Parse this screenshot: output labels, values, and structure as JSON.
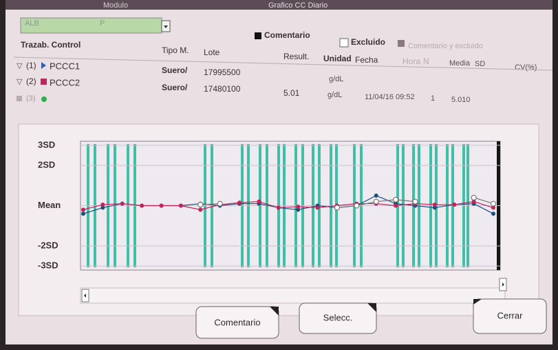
{
  "header": {
    "module_label": "Modulo",
    "title": "Grafico CC Diario",
    "select_value": "ALB",
    "select_value2": "P"
  },
  "legend": {
    "items": [
      "Comentario",
      "Excluido",
      "Comentario y excluido"
    ]
  },
  "table": {
    "columns": [
      "Trazab. Control",
      "Tipo M.",
      "Lote",
      "Result.",
      "Unidad",
      "Fecha",
      "Hora",
      "N",
      "Media",
      "SD",
      "CV(%)"
    ],
    "rows": [
      {
        "index": "(1)",
        "control": "PCCC1",
        "tipo": "Suero/",
        "lote": "17995500",
        "unidad": "g/dL"
      },
      {
        "index": "(2)",
        "control": "PCCC2",
        "tipo": "Suero/",
        "lote": "17480100",
        "result": "5.01",
        "unidad": "g/dL",
        "fecha": "11/04/16 09:52",
        "n": "1",
        "media": "5.010"
      },
      {
        "index": "(3)"
      }
    ]
  },
  "chart_data": {
    "type": "line",
    "ylim": [
      -3.2,
      3.2
    ],
    "yticks": [
      {
        "value": 3,
        "label": "3SD"
      },
      {
        "value": 2,
        "label": "2SD"
      },
      {
        "value": 0,
        "label": "Mean"
      },
      {
        "value": -2,
        "label": "-2SD"
      },
      {
        "value": -3,
        "label": "-3SD"
      }
    ],
    "series": [
      {
        "color": "#1d4f7a",
        "values": [
          -0.4,
          -0.1,
          0.1,
          0,
          0,
          0,
          0.1,
          0,
          0.1,
          0.1,
          -0.1,
          -0.2,
          0,
          -0.1,
          0,
          0.5,
          0.1,
          0,
          -0.1,
          0.05,
          0.1,
          -0.4
        ]
      },
      {
        "color": "#c0245c",
        "values": [
          -0.2,
          0.05,
          0.1,
          0,
          0,
          0,
          -0.2,
          0.05,
          0.15,
          0.2,
          -0.1,
          -0.05,
          -0.1,
          0,
          0.1,
          0.1,
          0,
          0.1,
          0.05,
          0.05,
          0.2,
          -0.1
        ]
      },
      {
        "color": "#ffffff",
        "values": [
          null,
          null,
          null,
          null,
          null,
          null,
          0.05,
          0.1,
          null,
          null,
          null,
          null,
          null,
          -0.1,
          0,
          0.2,
          0.3,
          0.2,
          null,
          null,
          0.4,
          0.1
        ]
      }
    ]
  },
  "buttons": [
    "Comentario",
    "Selecc.",
    "Cerrar"
  ]
}
